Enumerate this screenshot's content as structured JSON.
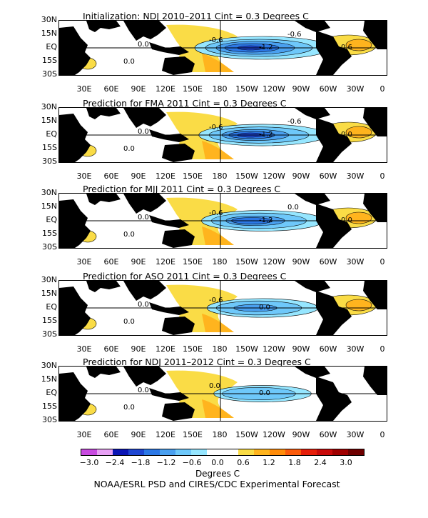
{
  "panels": [
    {
      "title": "Initialization: NDJ 2010–2011   Cint = 0.3 Degrees C",
      "strength": 1.0,
      "labels": [
        "0.0",
        "0.0",
        "-0.6",
        "-1.2",
        "-0.6",
        "0.6",
        "0.0"
      ]
    },
    {
      "title": "Prediction for FMA 2011   Cint = 0.3 Degrees C",
      "strength": 0.85,
      "labels": [
        "0.0",
        "0.0",
        "-0.6",
        "-1.2",
        "-0.6",
        "0.0"
      ]
    },
    {
      "title": "Prediction for MJJ 2011   Cint = 0.3 Degrees C",
      "strength": 0.75,
      "labels": [
        "0.0",
        "0.0",
        "-0.6",
        "-1.2",
        "0.0",
        "0.0"
      ]
    },
    {
      "title": "Prediction for ASO 2011   Cint = 0.3 Degrees C",
      "strength": 0.55,
      "labels": [
        "0.0",
        "0.0",
        "-0.6",
        "0.0"
      ]
    },
    {
      "title": "Prediction for NDJ 2011–2012   Cint = 0.3 Degrees C",
      "strength": 0.3,
      "labels": [
        "0.0",
        "0.0",
        "0.0",
        "0.0"
      ]
    }
  ],
  "lat_labels": [
    "30N",
    "15N",
    "EQ",
    "15S",
    "30S"
  ],
  "lon_labels": [
    "30E",
    "60E",
    "90E",
    "120E",
    "150E",
    "180",
    "150W",
    "120W",
    "90W",
    "60W",
    "30W",
    "0"
  ],
  "colorbar": {
    "colors": [
      "#c84ae0",
      "#e7a0f4",
      "#0a14b4",
      "#1e46d2",
      "#2c78e6",
      "#4aa0f0",
      "#6ec8fa",
      "#96e6ff",
      "#ffffff",
      "#ffffff",
      "#fadc46",
      "#ffb41e",
      "#ff8c0a",
      "#fa5a0a",
      "#e61e0a",
      "#c80a0a",
      "#a00000",
      "#6e0000"
    ],
    "ticks": [
      "−3.0",
      "−2.4",
      "−1.8",
      "−1.2",
      "−0.6",
      "0.0",
      "0.6",
      "1.2",
      "1.8",
      "2.4",
      "3.0"
    ],
    "units": "Degrees C"
  },
  "footer": "NOAA/ESRL PSD and CIRES/CDC Experimental Forecast"
}
